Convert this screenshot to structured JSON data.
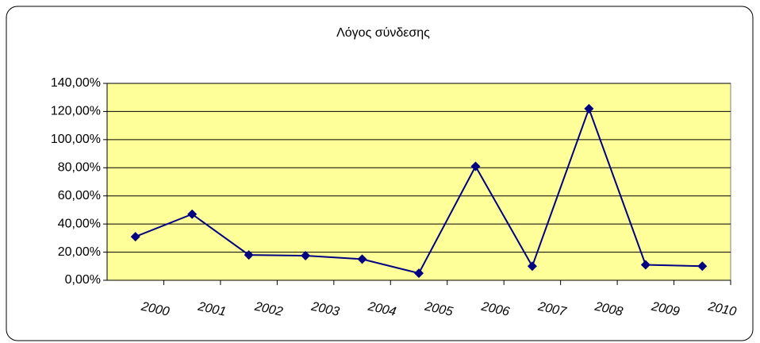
{
  "chart_data": {
    "type": "line",
    "title": "Λόγος σύνδεσης",
    "categories": [
      "2000",
      "2001",
      "2002",
      "2003",
      "2004",
      "2005",
      "2006",
      "2007",
      "2008",
      "2009",
      "2010"
    ],
    "values": [
      31,
      47,
      18,
      17.5,
      15,
      5,
      81,
      10,
      122,
      11,
      10
    ],
    "color": "#000080",
    "ylim": [
      0,
      140
    ],
    "yticks": [
      {
        "value": 0,
        "label": "0,00%"
      },
      {
        "value": 20,
        "label": "20,00%"
      },
      {
        "value": 40,
        "label": "40,00%"
      },
      {
        "value": 60,
        "label": "60,00%"
      },
      {
        "value": 80,
        "label": "80,00%"
      },
      {
        "value": 100,
        "label": "100,00%"
      },
      {
        "value": 120,
        "label": "120,00%"
      },
      {
        "value": 140,
        "label": "140,00%"
      }
    ],
    "grid": true
  }
}
